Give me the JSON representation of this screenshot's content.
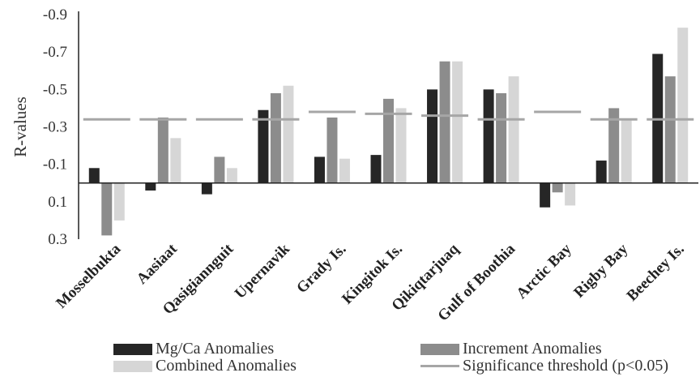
{
  "chart_data": {
    "type": "bar",
    "ylabel": "R-values",
    "y_axis_reversed": true,
    "ylim": [
      0.3,
      -0.9
    ],
    "yticks": [
      -0.9,
      -0.7,
      -0.5,
      -0.3,
      -0.1,
      0.1,
      0.3
    ],
    "ytick_labels": [
      "-0.9",
      "-0.7",
      "-0.5",
      "-0.3",
      "-0.1",
      "0.1",
      "0.3"
    ],
    "categories": [
      "Mosselbukta",
      "Aasiaat",
      "Qasigiannguit",
      "Upernavik",
      "Grady Is.",
      "Kingitok Is.",
      "Qikiqtarjuaq",
      "Gulf of Boothia",
      "Arctic Bay",
      "Rigby Bay",
      "Beechey Is."
    ],
    "series": [
      {
        "name": "Mg/Ca Anomalies",
        "color": "#262626",
        "values": [
          -0.08,
          0.04,
          0.06,
          -0.39,
          -0.14,
          -0.15,
          -0.5,
          -0.5,
          0.13,
          -0.12,
          -0.69
        ]
      },
      {
        "name": "Increment Anomalies",
        "color": "#8c8c8c",
        "values": [
          0.28,
          -0.35,
          -0.14,
          -0.48,
          -0.35,
          -0.45,
          -0.65,
          -0.48,
          0.05,
          -0.4,
          -0.57
        ]
      },
      {
        "name": "Combined Anomalies",
        "color": "#d6d6d6",
        "values": [
          0.2,
          -0.24,
          -0.08,
          -0.52,
          -0.13,
          -0.4,
          -0.65,
          -0.57,
          0.12,
          -0.34,
          -0.83
        ]
      }
    ],
    "significance_threshold": {
      "name": "Significance threshold (p<0.05)",
      "color": "#a6a6a6",
      "values": [
        -0.34,
        -0.34,
        -0.34,
        -0.34,
        -0.38,
        -0.37,
        -0.36,
        -0.34,
        -0.38,
        -0.34,
        -0.34
      ]
    },
    "grid": false,
    "legend_position": "bottom"
  }
}
